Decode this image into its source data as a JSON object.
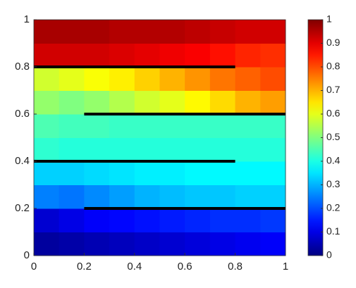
{
  "chart_data": {
    "type": "heatmap",
    "x": [
      0.05,
      0.15,
      0.25,
      0.35,
      0.45,
      0.55,
      0.65,
      0.75,
      0.85,
      0.95
    ],
    "y": [
      0.05,
      0.15,
      0.25,
      0.35,
      0.45,
      0.55,
      0.65,
      0.75,
      0.85,
      0.95
    ],
    "z": [
      [
        0.03,
        0.04,
        0.05,
        0.06,
        0.07,
        0.08,
        0.09,
        0.1,
        0.11,
        0.12
      ],
      [
        0.08,
        0.1,
        0.12,
        0.13,
        0.14,
        0.15,
        0.16,
        0.17,
        0.17,
        0.18
      ],
      [
        0.25,
        0.24,
        0.26,
        0.28,
        0.3,
        0.31,
        0.32,
        0.32,
        0.33,
        0.33
      ],
      [
        0.33,
        0.33,
        0.34,
        0.35,
        0.36,
        0.36,
        0.37,
        0.37,
        0.37,
        0.37
      ],
      [
        0.42,
        0.41,
        0.41,
        0.41,
        0.41,
        0.41,
        0.41,
        0.41,
        0.41,
        0.41
      ],
      [
        0.45,
        0.44,
        0.44,
        0.43,
        0.43,
        0.43,
        0.43,
        0.43,
        0.43,
        0.43
      ],
      [
        0.52,
        0.5,
        0.52,
        0.55,
        0.58,
        0.6,
        0.63,
        0.66,
        0.7,
        0.72
      ],
      [
        0.58,
        0.6,
        0.62,
        0.64,
        0.67,
        0.7,
        0.73,
        0.76,
        0.78,
        0.8
      ],
      [
        0.92,
        0.92,
        0.92,
        0.91,
        0.9,
        0.89,
        0.88,
        0.86,
        0.84,
        0.83
      ],
      [
        0.96,
        0.96,
        0.96,
        0.95,
        0.95,
        0.95,
        0.94,
        0.93,
        0.92,
        0.92
      ]
    ],
    "fractures": [
      {
        "x": [
          0,
          0.8
        ],
        "y": [
          0.8,
          0.8
        ]
      },
      {
        "x": [
          0.2,
          1
        ],
        "y": [
          0.6,
          0.6
        ]
      },
      {
        "x": [
          0,
          0.8
        ],
        "y": [
          0.4,
          0.4
        ]
      },
      {
        "x": [
          0.2,
          1
        ],
        "y": [
          0.2,
          0.2
        ]
      }
    ],
    "colormap": "jet",
    "xlim": [
      0,
      1
    ],
    "ylim": [
      0,
      1
    ],
    "xticks": [
      0,
      0.2,
      0.4,
      0.6,
      0.8,
      1
    ],
    "yticks": [
      0,
      0.2,
      0.4,
      0.6,
      0.8,
      1
    ],
    "clim": [
      0,
      1
    ],
    "cticks": [
      0,
      0.1,
      0.2,
      0.3,
      0.4,
      0.5,
      0.6,
      0.7,
      0.8,
      0.9,
      1
    ]
  }
}
